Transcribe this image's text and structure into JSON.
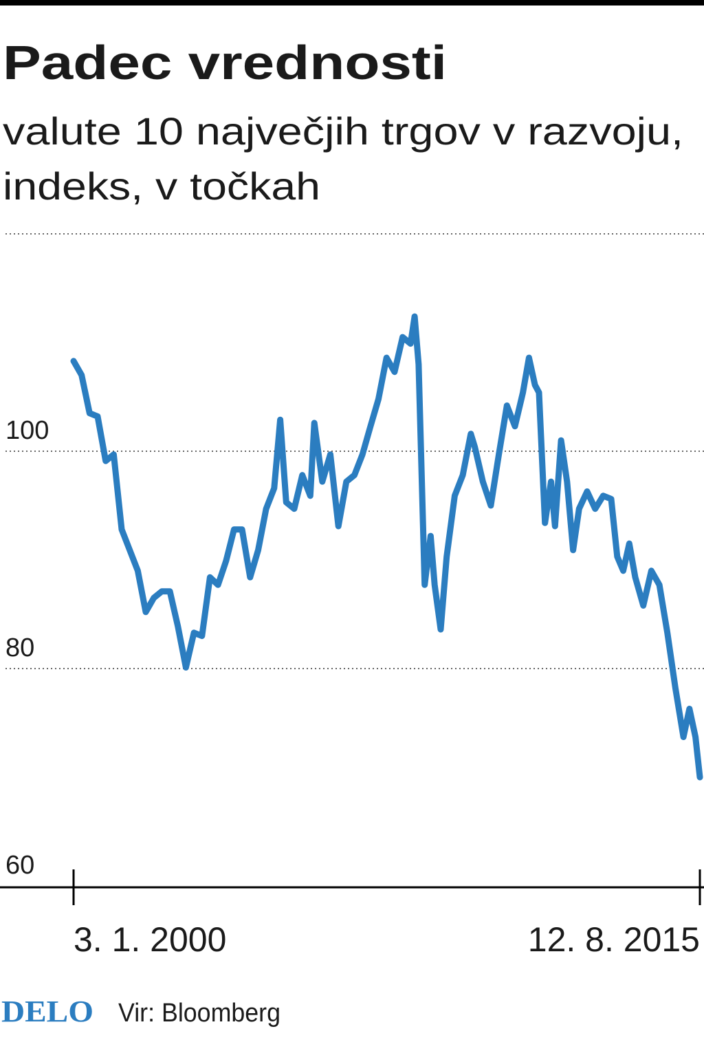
{
  "chart_data": {
    "type": "line",
    "title": "Padec vrednosti",
    "subtitle": [
      "valute 10 največjih trgov v razvoju,",
      "indeks, v točkah"
    ],
    "brand": "DELO",
    "source": "Vir: Bloomberg",
    "color": "#2b7dc0",
    "grid": true,
    "ylim": [
      60,
      120
    ],
    "yticks": [
      60,
      80,
      100
    ],
    "xlim": [
      2000.0,
      2015.61
    ],
    "xticks": [
      {
        "value": 2000.0,
        "label": "3. 1. 2000"
      },
      {
        "value": 2015.61,
        "label": "12. 8. 2015"
      }
    ],
    "x": [
      2000.0,
      2000.2,
      2000.4,
      2000.6,
      2000.8,
      2001.0,
      2001.2,
      2001.4,
      2001.6,
      2001.8,
      2002.0,
      2002.2,
      2002.4,
      2002.6,
      2002.8,
      2003.0,
      2003.2,
      2003.4,
      2003.6,
      2003.8,
      2004.0,
      2004.2,
      2004.4,
      2004.6,
      2004.8,
      2005.0,
      2005.15,
      2005.3,
      2005.5,
      2005.7,
      2005.9,
      2006.0,
      2006.2,
      2006.4,
      2006.6,
      2006.8,
      2007.0,
      2007.2,
      2007.4,
      2007.6,
      2007.8,
      2008.0,
      2008.2,
      2008.4,
      2008.5,
      2008.6,
      2008.75,
      2008.9,
      2009.0,
      2009.15,
      2009.3,
      2009.5,
      2009.7,
      2009.9,
      2010.0,
      2010.2,
      2010.4,
      2010.6,
      2010.8,
      2011.0,
      2011.2,
      2011.35,
      2011.5,
      2011.6,
      2011.75,
      2011.9,
      2012.0,
      2012.15,
      2012.3,
      2012.45,
      2012.6,
      2012.8,
      2013.0,
      2013.2,
      2013.4,
      2013.55,
      2013.7,
      2013.85,
      2014.0,
      2014.2,
      2014.4,
      2014.6,
      2014.8,
      2015.0,
      2015.2,
      2015.35,
      2015.5,
      2015.61
    ],
    "values": [
      108.3,
      107.0,
      103.5,
      103.2,
      99.1,
      99.7,
      92.8,
      90.9,
      89.0,
      85.2,
      86.5,
      87.1,
      87.1,
      83.9,
      80.1,
      83.3,
      83.0,
      88.4,
      87.7,
      89.9,
      92.8,
      92.8,
      88.4,
      90.9,
      94.7,
      96.6,
      102.9,
      95.3,
      94.7,
      97.8,
      95.9,
      102.6,
      97.2,
      99.7,
      93.1,
      97.2,
      97.8,
      99.7,
      102.3,
      104.8,
      108.6,
      107.3,
      110.5,
      109.9,
      112.4,
      108.0,
      87.7,
      92.2,
      87.7,
      83.6,
      90.3,
      95.9,
      97.8,
      101.6,
      100.4,
      97.2,
      95.0,
      99.7,
      104.2,
      102.3,
      105.4,
      108.6,
      106.1,
      105.4,
      93.4,
      97.2,
      93.1,
      101.0,
      97.2,
      90.9,
      94.7,
      96.3,
      94.7,
      95.9,
      95.6,
      90.3,
      89.0,
      91.5,
      88.4,
      85.8,
      89.0,
      87.7,
      83.3,
      78.2,
      73.7,
      76.3,
      73.7,
      70.0
    ]
  }
}
